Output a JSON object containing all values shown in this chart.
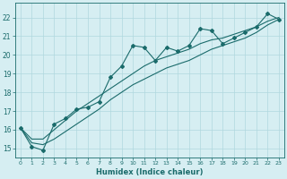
{
  "xlabel": "Humidex (Indice chaleur)",
  "ylabel": "",
  "xlim": [
    -0.5,
    23.5
  ],
  "ylim": [
    14.5,
    22.8
  ],
  "xticks": [
    0,
    1,
    2,
    3,
    4,
    5,
    6,
    7,
    8,
    9,
    10,
    11,
    12,
    13,
    14,
    15,
    16,
    17,
    18,
    19,
    20,
    21,
    22,
    23
  ],
  "yticks": [
    15,
    16,
    17,
    18,
    19,
    20,
    21,
    22
  ],
  "bg_color": "#d6eef2",
  "line_color": "#1a6b6b",
  "grid_color": "#b0d8de",
  "line1_x": [
    0,
    1,
    2,
    3,
    4,
    5,
    6,
    7,
    8,
    9,
    10,
    11,
    12,
    13,
    14,
    15,
    16,
    17,
    18,
    19,
    20,
    21,
    22,
    23
  ],
  "line1_y": [
    16.1,
    15.1,
    14.9,
    16.3,
    16.6,
    17.1,
    17.2,
    17.5,
    18.8,
    19.4,
    20.5,
    20.4,
    19.7,
    20.4,
    20.2,
    20.5,
    21.4,
    21.3,
    20.6,
    20.9,
    21.2,
    21.5,
    22.2,
    21.9
  ],
  "line2_x": [
    0,
    1,
    2,
    3,
    4,
    5,
    6,
    7,
    8,
    9,
    10,
    11,
    12,
    13,
    14,
    15,
    16,
    17,
    18,
    19,
    20,
    21,
    22,
    23
  ],
  "line2_y": [
    16.1,
    15.5,
    15.5,
    16.0,
    16.5,
    17.0,
    17.4,
    17.8,
    18.2,
    18.6,
    19.0,
    19.4,
    19.7,
    19.9,
    20.1,
    20.3,
    20.6,
    20.8,
    20.9,
    21.1,
    21.3,
    21.5,
    21.8,
    22.0
  ],
  "line3_x": [
    0,
    1,
    2,
    3,
    4,
    5,
    6,
    7,
    8,
    9,
    10,
    11,
    12,
    13,
    14,
    15,
    16,
    17,
    18,
    19,
    20,
    21,
    22,
    23
  ],
  "line3_y": [
    16.1,
    15.3,
    15.2,
    15.5,
    15.9,
    16.3,
    16.7,
    17.1,
    17.6,
    18.0,
    18.4,
    18.7,
    19.0,
    19.3,
    19.5,
    19.7,
    20.0,
    20.3,
    20.5,
    20.7,
    20.9,
    21.2,
    21.6,
    21.9
  ]
}
